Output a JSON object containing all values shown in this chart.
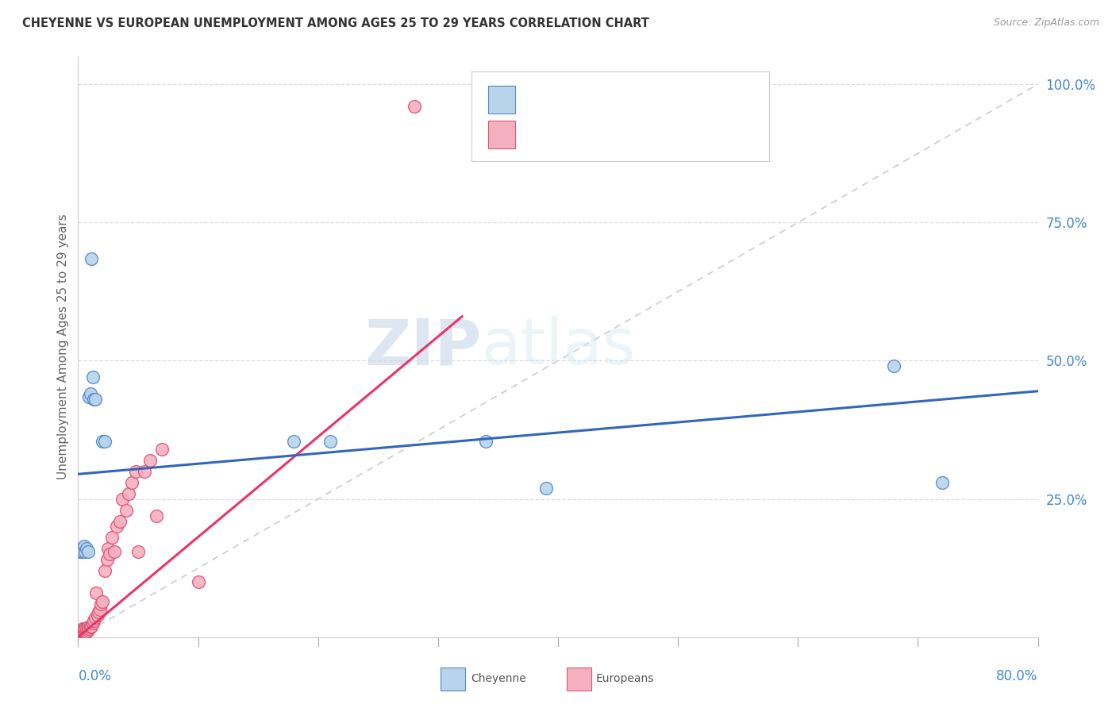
{
  "title": "CHEYENNE VS EUROPEAN UNEMPLOYMENT AMONG AGES 25 TO 29 YEARS CORRELATION CHART",
  "source": "Source: ZipAtlas.com",
  "ylabel": "Unemployment Among Ages 25 to 29 years",
  "xmin": 0.0,
  "xmax": 0.8,
  "ymin": 0.0,
  "ymax": 1.05,
  "cheyenne_color": "#b8d4ea",
  "europeans_color": "#f5b0c0",
  "cheyenne_edge_color": "#5588cc",
  "europeans_edge_color": "#dd5577",
  "blue_line_color": "#3366bb",
  "pink_line_color": "#ee3366",
  "diag_line_color": "#cccccc",
  "watermark_zip": "ZIP",
  "watermark_atlas": "atlas",
  "cheyenne_x": [
    0.002,
    0.003,
    0.004,
    0.005,
    0.006,
    0.007,
    0.008,
    0.009,
    0.01,
    0.011,
    0.012,
    0.013,
    0.014,
    0.02,
    0.022,
    0.18,
    0.21,
    0.34,
    0.39,
    0.68,
    0.72
  ],
  "cheyenne_y": [
    0.155,
    0.16,
    0.155,
    0.165,
    0.155,
    0.16,
    0.155,
    0.435,
    0.44,
    0.685,
    0.47,
    0.43,
    0.43,
    0.355,
    0.355,
    0.355,
    0.355,
    0.355,
    0.27,
    0.49,
    0.28
  ],
  "europeans_x": [
    0.001,
    0.001,
    0.001,
    0.002,
    0.002,
    0.002,
    0.003,
    0.003,
    0.003,
    0.004,
    0.004,
    0.004,
    0.005,
    0.005,
    0.005,
    0.006,
    0.006,
    0.007,
    0.007,
    0.008,
    0.008,
    0.009,
    0.01,
    0.011,
    0.012,
    0.013,
    0.014,
    0.015,
    0.016,
    0.017,
    0.018,
    0.019,
    0.02,
    0.022,
    0.024,
    0.025,
    0.026,
    0.028,
    0.03,
    0.032,
    0.035,
    0.037,
    0.04,
    0.042,
    0.045,
    0.048,
    0.05,
    0.055,
    0.06,
    0.065,
    0.07,
    0.1,
    0.28
  ],
  "europeans_y": [
    0.005,
    0.008,
    0.01,
    0.005,
    0.008,
    0.01,
    0.005,
    0.008,
    0.01,
    0.005,
    0.01,
    0.015,
    0.008,
    0.012,
    0.015,
    0.01,
    0.015,
    0.01,
    0.015,
    0.012,
    0.018,
    0.015,
    0.018,
    0.02,
    0.025,
    0.03,
    0.035,
    0.08,
    0.04,
    0.045,
    0.05,
    0.06,
    0.065,
    0.12,
    0.14,
    0.16,
    0.15,
    0.18,
    0.155,
    0.2,
    0.21,
    0.25,
    0.23,
    0.26,
    0.28,
    0.3,
    0.155,
    0.3,
    0.32,
    0.22,
    0.34,
    0.1,
    0.96
  ],
  "blue_line_x0": 0.0,
  "blue_line_x1": 0.8,
  "blue_line_y0": 0.295,
  "blue_line_y1": 0.445,
  "pink_line_x0": 0.0,
  "pink_line_x1": 0.32,
  "pink_line_y0": 0.0,
  "pink_line_y1": 0.58
}
